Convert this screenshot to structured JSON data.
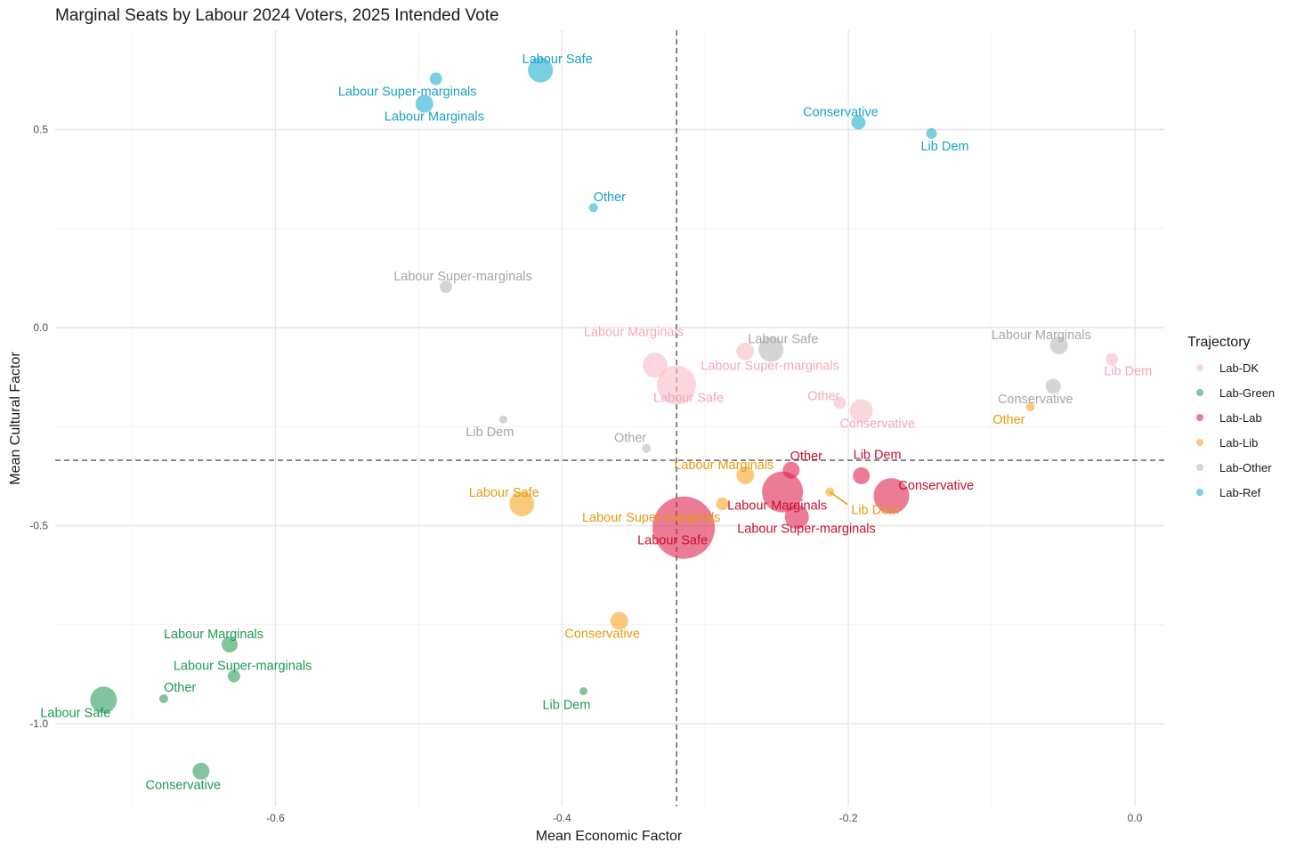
{
  "chart_data": {
    "type": "scatter",
    "title": "Marginal Seats by Labour 2024 Voters, 2025 Intended Vote",
    "xlabel": "Mean Economic Factor",
    "ylabel": "Mean Cultural Factor",
    "xlim": [
      -0.76,
      0.02
    ],
    "ylim": [
      -1.2,
      0.7
    ],
    "x_ticks": [
      -0.6,
      -0.4,
      -0.2,
      0.0
    ],
    "x_tick_labels": [
      "-0.6",
      "-0.4",
      "-0.2",
      "0.0"
    ],
    "y_ticks": [
      0.5,
      0.0,
      -0.5,
      -1.0
    ],
    "y_tick_labels": [
      "0.5",
      "0.0",
      "-0.5",
      "-1.0"
    ],
    "vline_x": -0.32,
    "hline_y": -0.335,
    "legend": {
      "title": "Trajectory",
      "position": "right",
      "entries": [
        {
          "name": "Lab-DK",
          "color": "#F9BDC6"
        },
        {
          "name": "Lab-Green",
          "color": "#2E9E5B"
        },
        {
          "name": "Lab-Lab",
          "color": "#E0244F"
        },
        {
          "name": "Lab-Lib",
          "color": "#F5A623"
        },
        {
          "name": "Lab-Other",
          "color": "#B9B9B9"
        },
        {
          "name": "Lab-Ref",
          "color": "#1FB0CF"
        }
      ]
    },
    "series": [
      {
        "name": "Lab-DK",
        "color": "#F9BDC6",
        "label_color": "#F2A9B4",
        "points": [
          {
            "label": "Labour Marginals",
            "x": -0.335,
            "y": -0.095,
            "size": 14,
            "anchor": "middle"
          },
          {
            "label": "Labour Safe",
            "x": -0.32,
            "y": -0.145,
            "size": 22,
            "anchor": "start"
          },
          {
            "label": "Labour Super-marginals",
            "x": -0.272,
            "y": -0.06,
            "size": 10,
            "anchor": "start"
          },
          {
            "label": "Other",
            "x": -0.206,
            "y": -0.19,
            "size": 7,
            "anchor": "end"
          },
          {
            "label": "Conservative",
            "x": -0.191,
            "y": -0.21,
            "size": 13,
            "anchor": "middle"
          },
          {
            "label": "Lib Dem",
            "x": -0.016,
            "y": -0.08,
            "size": 7,
            "anchor": "middle"
          }
        ]
      },
      {
        "name": "Lab-Green",
        "color": "#2E9E5B",
        "label_color": "#1E9A53",
        "points": [
          {
            "label": "Labour Safe",
            "x": -0.72,
            "y": -0.94,
            "size": 15,
            "anchor": "end"
          },
          {
            "label": "Other",
            "x": -0.678,
            "y": -0.937,
            "size": 5,
            "anchor": "start"
          },
          {
            "label": "Labour Marginals",
            "x": -0.632,
            "y": -0.8,
            "size": 9,
            "anchor": "middle"
          },
          {
            "label": "Labour Super-marginals",
            "x": -0.629,
            "y": -0.88,
            "size": 7,
            "anchor": "start"
          },
          {
            "label": "Conservative",
            "x": -0.652,
            "y": -1.12,
            "size": 9.5,
            "anchor": "middle"
          },
          {
            "label": "Lib Dem",
            "x": -0.385,
            "y": -0.918,
            "size": 4.5,
            "anchor": "middle"
          }
        ]
      },
      {
        "name": "Lab-Lab",
        "color": "#E0244F",
        "label_color": "#C8102E",
        "points": [
          {
            "label": "Labour Safe",
            "x": -0.315,
            "y": -0.505,
            "size": 35,
            "anchor": "end"
          },
          {
            "label": "Labour Marginals",
            "x": -0.246,
            "y": -0.415,
            "size": 23,
            "anchor": "middle"
          },
          {
            "label": "Labour Super-marginals",
            "x": -0.236,
            "y": -0.478,
            "size": 13.5,
            "anchor": "start"
          },
          {
            "label": "Other",
            "x": -0.24,
            "y": -0.36,
            "size": 9.5,
            "anchor": "middle"
          },
          {
            "label": "Lib Dem",
            "x": -0.191,
            "y": -0.374,
            "size": 9.5,
            "anchor": "middle"
          },
          {
            "label": "Conservative",
            "x": -0.17,
            "y": -0.425,
            "size": 20,
            "anchor": "start"
          }
        ]
      },
      {
        "name": "Lab-Lib",
        "color": "#F5A623",
        "label_color": "#E69A10",
        "points": [
          {
            "label": "Labour Safe",
            "x": -0.428,
            "y": -0.445,
            "size": 14,
            "anchor": "middle"
          },
          {
            "label": "Labour Marginals",
            "x": -0.272,
            "y": -0.373,
            "size": 10,
            "anchor": "middle"
          },
          {
            "label": "Labour Super-marginals",
            "x": -0.288,
            "y": -0.445,
            "size": 7,
            "anchor": "end"
          },
          {
            "label": "Lib Dem",
            "x": -0.213,
            "y": -0.415,
            "size": 5,
            "anchor": "start"
          },
          {
            "label": "Conservative",
            "x": -0.36,
            "y": -0.74,
            "size": 10,
            "anchor": "middle"
          },
          {
            "label": "Other",
            "x": -0.073,
            "y": -0.2,
            "size": 5,
            "anchor": "end"
          }
        ]
      },
      {
        "name": "Lab-Other",
        "color": "#B9B9B9",
        "label_color": "#A6A6A6",
        "points": [
          {
            "label": "Labour Super-marginals",
            "x": -0.481,
            "y": 0.103,
            "size": 7,
            "anchor": "middle"
          },
          {
            "label": "Lib Dem",
            "x": -0.441,
            "y": -0.232,
            "size": 4.5,
            "anchor": "end"
          },
          {
            "label": "Other",
            "x": -0.341,
            "y": -0.305,
            "size": 5,
            "anchor": "end"
          },
          {
            "label": "Labour Safe",
            "x": -0.254,
            "y": -0.055,
            "size": 14,
            "anchor": "start"
          },
          {
            "label": "Labour Marginals",
            "x": -0.053,
            "y": -0.045,
            "size": 10,
            "anchor": "middle"
          },
          {
            "label": "Conservative",
            "x": -0.057,
            "y": -0.148,
            "size": 8.5,
            "anchor": "middle"
          }
        ]
      },
      {
        "name": "Lab-Ref",
        "color": "#1FB0CF",
        "label_color": "#19A3C0",
        "points": [
          {
            "label": "Labour Safe",
            "x": -0.415,
            "y": 0.65,
            "size": 14,
            "anchor": "middle"
          },
          {
            "label": "Labour Super-marginals",
            "x": -0.488,
            "y": 0.628,
            "size": 7,
            "anchor": "middle"
          },
          {
            "label": "Labour Marginals",
            "x": -0.496,
            "y": 0.565,
            "size": 10,
            "anchor": "start"
          },
          {
            "label": "Other",
            "x": -0.378,
            "y": 0.303,
            "size": 5,
            "anchor": "start"
          },
          {
            "label": "Conservative",
            "x": -0.193,
            "y": 0.518,
            "size": 8,
            "anchor": "middle"
          },
          {
            "label": "Lib Dem",
            "x": -0.142,
            "y": 0.49,
            "size": 6,
            "anchor": "start"
          }
        ]
      }
    ]
  }
}
